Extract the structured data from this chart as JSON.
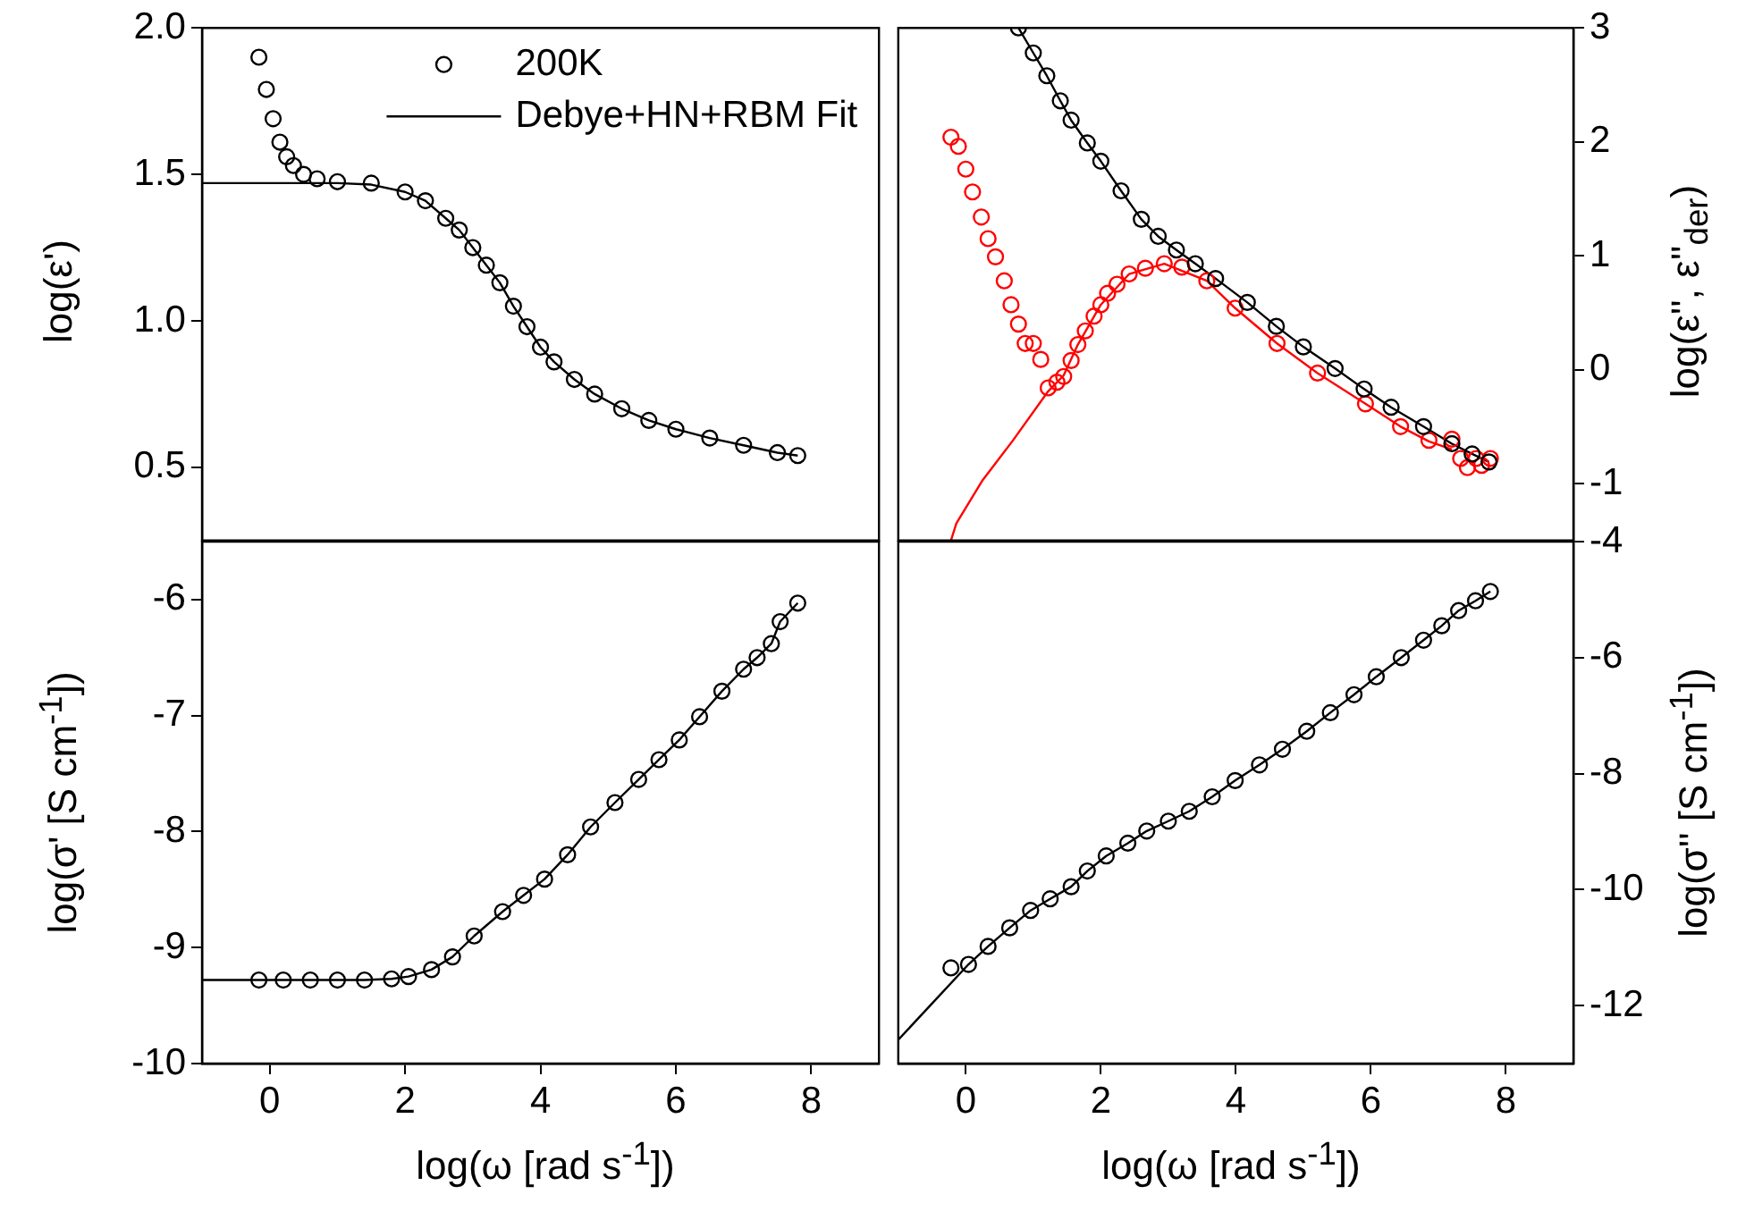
{
  "chart_data": [
    {
      "type": "scatter",
      "ylabel": "log(ε')",
      "xlim": [
        -1,
        9
      ],
      "xticks": [
        0,
        2,
        4,
        6,
        8
      ],
      "ylim": [
        0.25,
        2.0
      ],
      "yticks": [
        {
          "value": 0.5,
          "label": "0.5"
        },
        {
          "value": 1.0,
          "label": "1.0"
        },
        {
          "value": 1.5,
          "label": "1.5"
        },
        {
          "value": 2.0,
          "label": "2.0"
        }
      ],
      "tick_labels": "y",
      "legend": "top right",
      "marker": "circle",
      "series": [
        {
          "name": "200K",
          "color": "#000000",
          "x": [
            -0.16,
            -0.05,
            0.05,
            0.15,
            0.25,
            0.35,
            0.5,
            0.7,
            1.0,
            1.5,
            2.0,
            2.3,
            2.6,
            2.8,
            3.0,
            3.2,
            3.4,
            3.6,
            3.8,
            4.0,
            4.2,
            4.5,
            4.8,
            5.2,
            5.6,
            6.0,
            6.5,
            7.0,
            7.5,
            7.8
          ],
          "values": [
            1.9,
            1.79,
            1.69,
            1.61,
            1.56,
            1.53,
            1.5,
            1.485,
            1.475,
            1.47,
            1.44,
            1.41,
            1.35,
            1.31,
            1.25,
            1.19,
            1.13,
            1.05,
            0.98,
            0.91,
            0.86,
            0.8,
            0.75,
            0.7,
            0.66,
            0.63,
            0.6,
            0.575,
            0.55,
            0.54
          ]
        },
        {
          "name": "Debye+HN+RBM Fit",
          "type": "line",
          "marker": "none",
          "color": "#000000",
          "x": [
            -1,
            0,
            1,
            1.5,
            2.0,
            2.3,
            2.6,
            2.8,
            3.0,
            3.2,
            3.4,
            3.6,
            3.8,
            4.0,
            4.2,
            4.5,
            4.8,
            5.2,
            5.6,
            6.0,
            6.5,
            7.0,
            7.5,
            7.8
          ],
          "values": [
            1.47,
            1.47,
            1.47,
            1.465,
            1.44,
            1.41,
            1.35,
            1.31,
            1.25,
            1.19,
            1.13,
            1.05,
            0.98,
            0.91,
            0.86,
            0.8,
            0.75,
            0.7,
            0.66,
            0.63,
            0.6,
            0.575,
            0.55,
            0.54
          ]
        }
      ]
    },
    {
      "type": "scatter",
      "ylabel": "log(ε'', ε''$_{der}$)",
      "xlim": [
        -1,
        9
      ],
      "xticks": [
        0,
        2,
        4,
        6,
        8
      ],
      "ylim": [
        -1.5,
        3
      ],
      "yticks": [
        -1,
        0,
        1,
        2,
        3
      ],
      "tick_labels": "y",
      "marker": "circle",
      "series": [
        {
          "color": "#000000",
          "x": [
            0.78,
            1.0,
            1.2,
            1.4,
            1.56,
            1.8,
            2.0,
            2.3,
            2.6,
            2.85,
            3.12,
            3.4,
            3.7,
            4.17,
            4.6,
            5.0,
            5.47,
            5.9,
            6.3,
            6.78,
            7.2,
            7.5,
            7.75
          ],
          "values": [
            3.0,
            2.78,
            2.58,
            2.36,
            2.19,
            1.99,
            1.83,
            1.57,
            1.32,
            1.17,
            1.05,
            0.93,
            0.8,
            0.59,
            0.38,
            0.2,
            0.01,
            -0.17,
            -0.33,
            -0.5,
            -0.65,
            -0.74,
            -0.81
          ]
        },
        {
          "color": "#000000",
          "type": "line",
          "marker": "none",
          "x": [
            0.78,
            1.0,
            1.2,
            1.4,
            1.56,
            1.8,
            2.0,
            2.3,
            2.6,
            2.85,
            3.12,
            3.4,
            3.7,
            4.17,
            4.6,
            5.0,
            5.47,
            5.9,
            6.3,
            6.78,
            7.2,
            7.5,
            7.75
          ],
          "values": [
            3.0,
            2.78,
            2.58,
            2.36,
            2.19,
            1.99,
            1.83,
            1.57,
            1.32,
            1.17,
            1.05,
            0.93,
            0.8,
            0.59,
            0.38,
            0.2,
            0.01,
            -0.17,
            -0.33,
            -0.5,
            -0.65,
            -0.74,
            -0.81
          ]
        },
        {
          "color": "#ff0000",
          "x": [
            -0.22,
            -0.11,
            0.0,
            0.1,
            0.23,
            0.33,
            0.44,
            0.57,
            0.67,
            0.78,
            0.88,
            1.0,
            1.11,
            1.22,
            1.35,
            1.45,
            1.56,
            1.66,
            1.77,
            1.9,
            2.0,
            2.1,
            2.24,
            2.42,
            2.66,
            2.94,
            3.2,
            3.57,
            3.99,
            4.61,
            5.21,
            5.92,
            6.44,
            6.86,
            7.2,
            7.33,
            7.43,
            7.56,
            7.64,
            7.77
          ],
          "values": [
            2.04,
            1.96,
            1.76,
            1.56,
            1.34,
            1.15,
            0.99,
            0.78,
            0.57,
            0.4,
            0.23,
            0.23,
            0.09,
            -0.16,
            -0.11,
            -0.06,
            0.08,
            0.22,
            0.34,
            0.47,
            0.57,
            0.67,
            0.75,
            0.84,
            0.89,
            0.93,
            0.9,
            0.78,
            0.54,
            0.23,
            -0.03,
            -0.3,
            -0.5,
            -0.62,
            -0.61,
            -0.78,
            -0.86,
            -0.78,
            -0.84,
            -0.78
          ]
        },
        {
          "color": "#ff0000",
          "type": "line",
          "marker": "none",
          "x": [
            -0.22,
            -0.14,
            0.25,
            0.7,
            1.22,
            1.45,
            1.66,
            2.0,
            2.42,
            2.94,
            3.57,
            3.99,
            4.61,
            5.21,
            5.92,
            6.44,
            6.86,
            7.2
          ],
          "values": [
            -1.5,
            -1.35,
            -0.97,
            -0.62,
            -0.19,
            -0.05,
            0.22,
            0.57,
            0.84,
            0.93,
            0.78,
            0.54,
            0.23,
            -0.03,
            -0.3,
            -0.5,
            -0.63,
            -0.7
          ]
        }
      ]
    },
    {
      "type": "scatter",
      "xlabel": "log(ω [rad s$^{-1}$])",
      "ylabel": "log(σ' [S cm$^{-1}$])",
      "xlim": [
        -1,
        9
      ],
      "xticks": [
        0,
        2,
        4,
        6,
        8
      ],
      "ylim": [
        -10,
        -5.5
      ],
      "yticks": [
        -10,
        -9,
        -8,
        -7,
        -6
      ],
      "marker": "circle",
      "series": [
        {
          "color": "#000000",
          "x": [
            -0.16,
            0.2,
            0.6,
            1.0,
            1.4,
            1.8,
            2.05,
            2.39,
            2.7,
            3.02,
            3.44,
            3.75,
            4.06,
            4.4,
            4.74,
            5.1,
            5.45,
            5.75,
            6.05,
            6.35,
            6.68,
            7.0,
            7.2,
            7.41,
            7.54,
            7.8
          ],
          "values": [
            -9.28,
            -9.28,
            -9.28,
            -9.28,
            -9.28,
            -9.27,
            -9.25,
            -9.19,
            -9.08,
            -8.9,
            -8.69,
            -8.55,
            -8.41,
            -8.2,
            -7.96,
            -7.75,
            -7.55,
            -7.38,
            -7.21,
            -7.01,
            -6.79,
            -6.6,
            -6.5,
            -6.38,
            -6.19,
            -6.03
          ]
        },
        {
          "color": "#000000",
          "type": "line",
          "marker": "none",
          "x": [
            -1,
            -0.16,
            0.6,
            1.4,
            1.8,
            2.05,
            2.39,
            2.7,
            3.02,
            3.44,
            3.75,
            4.06,
            4.4,
            4.74,
            5.1,
            5.45,
            5.75,
            6.05,
            6.35,
            6.68,
            7.0,
            7.2,
            7.41,
            7.54,
            7.8
          ],
          "values": [
            -9.28,
            -9.28,
            -9.28,
            -9.28,
            -9.27,
            -9.25,
            -9.19,
            -9.08,
            -8.9,
            -8.69,
            -8.55,
            -8.41,
            -8.2,
            -7.96,
            -7.75,
            -7.55,
            -7.38,
            -7.21,
            -7.01,
            -6.79,
            -6.6,
            -6.5,
            -6.38,
            -6.19,
            -6.03
          ]
        }
      ]
    },
    {
      "type": "scatter",
      "xlabel": "log(ω [rad s$^{-1}$])",
      "ylabel": "log(σ'' [S cm$^{-1}$])",
      "xlim": [
        -1,
        9
      ],
      "xticks": [
        0,
        2,
        4,
        6,
        8
      ],
      "ylim": [
        -13,
        -4
      ],
      "yticks": [
        -12,
        -10,
        -8,
        -6,
        -4
      ],
      "marker": "circle",
      "series": [
        {
          "color": "#000000",
          "x": [
            -0.22,
            0.04,
            0.33,
            0.65,
            0.96,
            1.25,
            1.56,
            1.8,
            2.08,
            2.4,
            2.68,
            3.0,
            3.31,
            3.65,
            3.99,
            4.35,
            4.69,
            5.05,
            5.4,
            5.75,
            6.08,
            6.45,
            6.78,
            7.05,
            7.3,
            7.55,
            7.77
          ],
          "values": [
            -11.35,
            -11.29,
            -10.98,
            -10.66,
            -10.36,
            -10.16,
            -9.95,
            -9.68,
            -9.42,
            -9.2,
            -8.99,
            -8.82,
            -8.65,
            -8.4,
            -8.12,
            -7.85,
            -7.58,
            -7.27,
            -6.95,
            -6.64,
            -6.33,
            -6.0,
            -5.7,
            -5.45,
            -5.19,
            -5.02,
            -4.86
          ]
        },
        {
          "color": "#000000",
          "type": "line",
          "marker": "none",
          "x": [
            -1,
            0.04,
            0.33,
            0.65,
            0.96,
            1.25,
            1.56,
            1.8,
            2.08,
            2.4,
            2.68,
            3.0,
            3.31,
            3.65,
            3.99,
            4.35,
            4.69,
            5.05,
            5.4,
            5.75,
            6.08,
            6.45,
            6.78,
            7.05,
            7.3,
            7.55,
            7.77
          ],
          "values": [
            -12.59,
            -11.29,
            -10.98,
            -10.66,
            -10.36,
            -10.16,
            -9.95,
            -9.68,
            -9.42,
            -9.2,
            -8.99,
            -8.82,
            -8.65,
            -8.4,
            -8.12,
            -7.85,
            -7.58,
            -7.27,
            -6.95,
            -6.64,
            -6.33,
            -6.0,
            -5.7,
            -5.45,
            -5.19,
            -5.02,
            -4.86
          ]
        }
      ]
    }
  ]
}
